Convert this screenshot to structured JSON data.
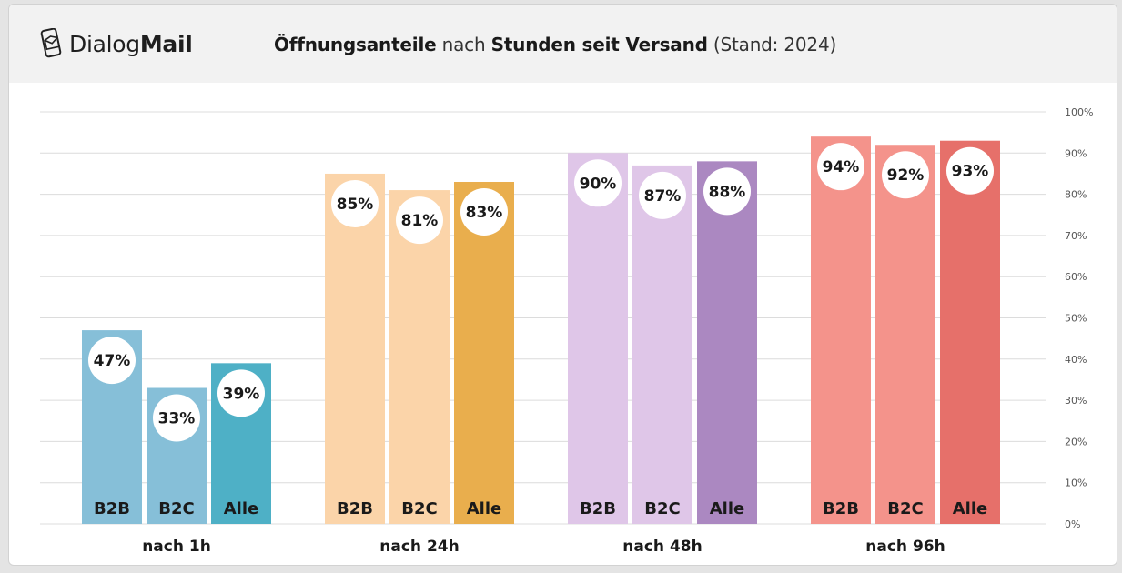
{
  "header": {
    "logo": {
      "part1": "Dialog",
      "part2": "Mail",
      "icon": "phone-envelope-icon"
    },
    "title": {
      "part1": "Öffnungsanteile",
      "part2": " nach ",
      "part3": "Stunden seit Versand",
      "part4": " (Stand: 2024)"
    }
  },
  "chart_data": {
    "type": "bar",
    "title": "Öffnungsanteile nach Stunden seit Versand (Stand: 2024)",
    "categories": [
      "nach 1h",
      "nach 24h",
      "nach 48h",
      "nach 96h"
    ],
    "series": [
      {
        "name": "B2B",
        "values": [
          47,
          85,
          90,
          94
        ]
      },
      {
        "name": "B2C",
        "values": [
          33,
          81,
          87,
          92
        ]
      },
      {
        "name": "Alle",
        "values": [
          39,
          83,
          88,
          93
        ]
      }
    ],
    "value_labels": [
      [
        "47%",
        "33%",
        "39%"
      ],
      [
        "85%",
        "81%",
        "83%"
      ],
      [
        "90%",
        "87%",
        "88%"
      ],
      [
        "94%",
        "92%",
        "93%"
      ]
    ],
    "ylim": [
      0,
      100
    ],
    "y_ticks": [
      0,
      10,
      20,
      30,
      40,
      50,
      60,
      70,
      80,
      90,
      100
    ],
    "y_tick_labels": [
      "0%",
      "10%",
      "20%",
      "30%",
      "40%",
      "50%",
      "60%",
      "70%",
      "80%",
      "90%",
      "100%"
    ],
    "y_axis_side": "right",
    "grid": true,
    "colors": [
      [
        "#86bfd8",
        "#86bfd8",
        "#4eb0c6"
      ],
      [
        "#fbd4a9",
        "#fbd4a9",
        "#e9ae4d"
      ],
      [
        "#dfc6e8",
        "#dfc6e8",
        "#ab88c1"
      ],
      [
        "#f4938b",
        "#f4938b",
        "#e6706a"
      ]
    ]
  }
}
